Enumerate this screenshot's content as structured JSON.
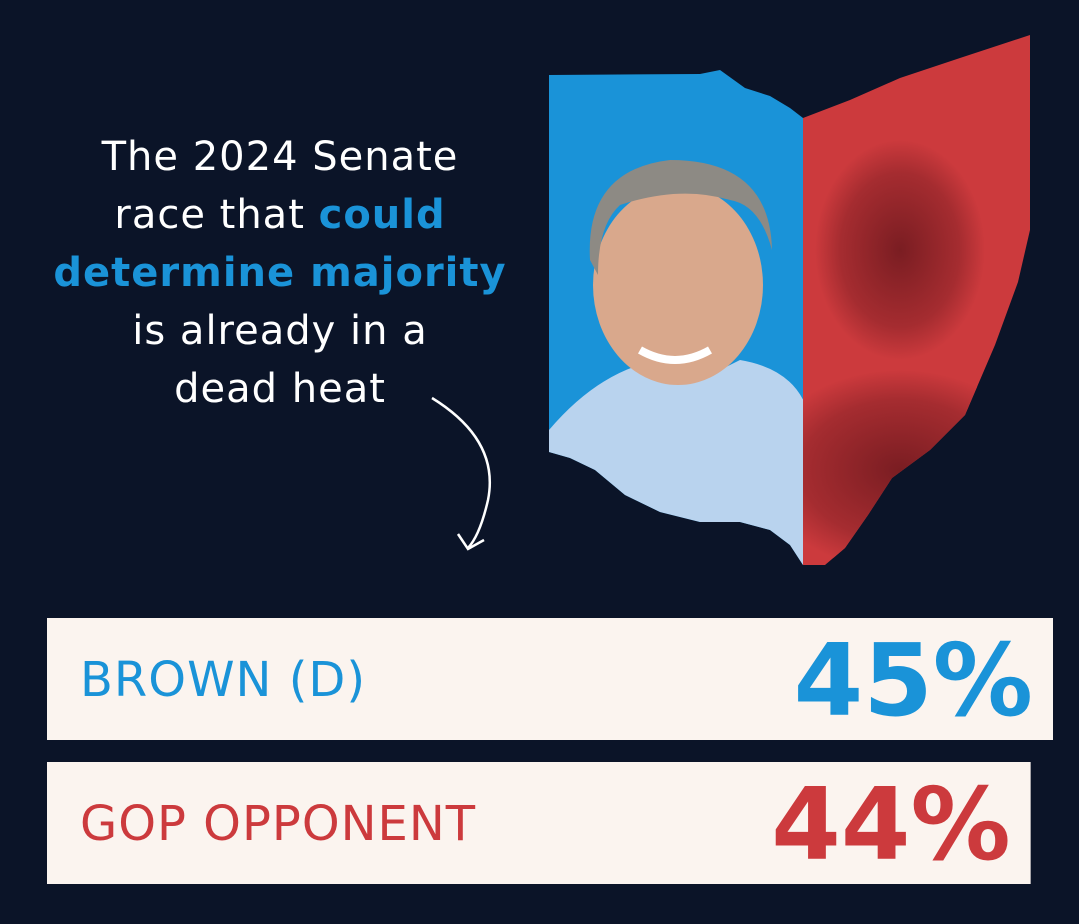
{
  "chart_data": {
    "type": "bar",
    "title": [
      "The 2024 Senate",
      "race that",
      "could",
      "determine majority",
      "is already in a",
      "dead heat"
    ],
    "categories": [
      "BROWN (D)",
      "GOP OPPONENT"
    ],
    "values": [
      45,
      44
    ],
    "value_labels": [
      "45%",
      "44%"
    ],
    "colors": [
      "#1a93d8",
      "#cc3a3d"
    ],
    "bar_color": "#fbf4ef"
  }
}
